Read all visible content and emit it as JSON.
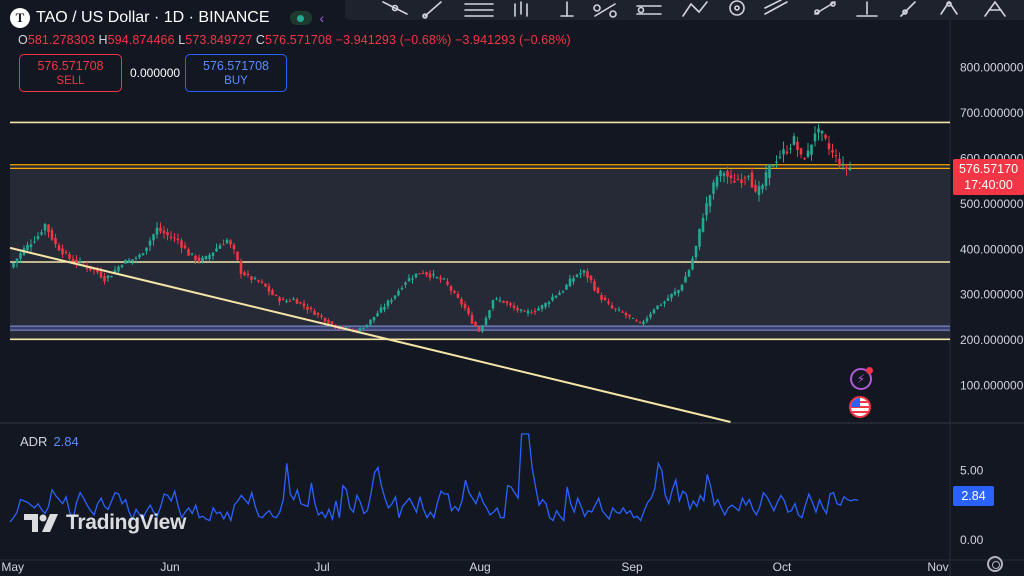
{
  "header": {
    "logo_letter": "T",
    "title": "TAO / US Dollar · 1D · BINANCE"
  },
  "ohlc": {
    "o_label": "O",
    "o": "581.278303",
    "h_label": "H",
    "h": "594.874466",
    "l_label": "L",
    "l": "573.849727",
    "c_label": "C",
    "c": "576.571708",
    "change": "−3.941293 (−0.68%)",
    "change2": "−3.941293 (−0.68%)"
  },
  "trade": {
    "sell_price": "576.571708",
    "sell_label": "SELL",
    "spread": "0.000000",
    "buy_price": "576.571708",
    "buy_label": "BUY"
  },
  "price_tag": {
    "price": "576.57170",
    "countdown": "17:40:00"
  },
  "adr_tag": "2.84",
  "adr_legend": {
    "name": "ADR",
    "value": "2.84"
  },
  "watermark": "TradingView",
  "icons": {
    "logo": "tao-logo-icon",
    "status": "market-open-icon",
    "flash": "flash-event-icon",
    "flag": "us-flag-event-icon",
    "settings": "settings-icon"
  },
  "colors": {
    "background": "#131722",
    "up": "#22ab94",
    "down": "#f23645",
    "level_line": "#f5e6a8",
    "current_price": "#f7a600",
    "adr_line": "#2962ff"
  },
  "chart_data": [
    {
      "type": "candlestick",
      "title": "TAO / US Dollar · 1D · BINANCE",
      "x_ticks": [
        "May",
        "Jun",
        "Jul",
        "Aug",
        "Sep",
        "Oct",
        "Nov"
      ],
      "y_ticks": [
        "100.000000",
        "200.000000",
        "300.000000",
        "400.000000",
        "500.000000",
        "600.000000",
        "700.000000",
        "800.000000"
      ],
      "ylim": [
        20,
        900
      ],
      "close_path": [
        [
          0,
          360
        ],
        [
          4,
          400
        ],
        [
          8,
          430
        ],
        [
          10,
          455
        ],
        [
          13,
          410
        ],
        [
          17,
          380
        ],
        [
          21,
          365
        ],
        [
          25,
          350
        ],
        [
          27,
          335
        ],
        [
          29,
          345
        ],
        [
          32,
          370
        ],
        [
          34,
          375
        ],
        [
          37,
          385
        ],
        [
          40,
          420
        ],
        [
          42,
          445
        ],
        [
          45,
          430
        ],
        [
          48,
          420
        ],
        [
          51,
          390
        ],
        [
          54,
          375
        ],
        [
          56,
          380
        ],
        [
          58,
          395
        ],
        [
          60,
          410
        ],
        [
          62,
          420
        ],
        [
          64,
          395
        ],
        [
          66,
          350
        ],
        [
          69,
          335
        ],
        [
          72,
          325
        ],
        [
          75,
          300
        ],
        [
          78,
          285
        ],
        [
          81,
          290
        ],
        [
          84,
          275
        ],
        [
          87,
          260
        ],
        [
          90,
          245
        ],
        [
          93,
          230
        ],
        [
          96,
          225
        ],
        [
          99,
          220
        ],
        [
          102,
          235
        ],
        [
          105,
          260
        ],
        [
          107,
          275
        ],
        [
          110,
          300
        ],
        [
          113,
          330
        ],
        [
          116,
          345
        ],
        [
          118,
          350
        ],
        [
          121,
          340
        ],
        [
          124,
          330
        ],
        [
          126,
          310
        ],
        [
          128,
          290
        ],
        [
          130,
          270
        ],
        [
          132,
          240
        ],
        [
          134,
          220
        ],
        [
          136,
          250
        ],
        [
          138,
          290
        ],
        [
          141,
          285
        ],
        [
          144,
          270
        ],
        [
          147,
          260
        ],
        [
          150,
          265
        ],
        [
          153,
          280
        ],
        [
          155,
          295
        ],
        [
          158,
          310
        ],
        [
          160,
          330
        ],
        [
          162,
          345
        ],
        [
          164,
          350
        ],
        [
          166,
          330
        ],
        [
          168,
          300
        ],
        [
          170,
          285
        ],
        [
          172,
          270
        ],
        [
          175,
          260
        ],
        [
          178,
          245
        ],
        [
          180,
          235
        ],
        [
          182,
          250
        ],
        [
          184,
          270
        ],
        [
          187,
          285
        ],
        [
          189,
          300
        ],
        [
          191,
          310
        ],
        [
          194,
          355
        ],
        [
          196,
          405
        ],
        [
          198,
          475
        ],
        [
          200,
          520
        ],
        [
          202,
          560
        ],
        [
          204,
          570
        ],
        [
          206,
          550
        ],
        [
          209,
          555
        ],
        [
          211,
          570
        ],
        [
          213,
          520
        ],
        [
          215,
          540
        ],
        [
          217,
          580
        ],
        [
          219,
          600
        ],
        [
          222,
          620
        ],
        [
          224,
          640
        ],
        [
          226,
          600
        ],
        [
          228,
          610
        ],
        [
          230,
          660
        ],
        [
          232,
          650
        ],
        [
          234,
          620
        ],
        [
          236,
          600
        ],
        [
          238,
          580
        ],
        [
          240,
          577
        ]
      ],
      "levels": [
        {
          "label": "resistance",
          "value": 679
        },
        {
          "label": "current",
          "value": 586
        },
        {
          "label": "current",
          "value": 578
        },
        {
          "label": "support",
          "value": 372
        },
        {
          "label": "support",
          "value": 231
        },
        {
          "label": "support",
          "value": 222
        },
        {
          "label": "support",
          "value": 202
        }
      ],
      "trendline": {
        "from": [
          0,
          403
        ],
        "to": [
          203,
          20
        ]
      },
      "last_price": 576.571708
    },
    {
      "type": "line",
      "title": "ADR",
      "y_ticks": [
        "0.00",
        "5.00"
      ],
      "ylim": [
        0,
        7.6
      ],
      "series": [
        {
          "name": "ADR",
          "values": [
            1.3,
            1.6,
            2.0,
            2.9,
            2.8,
            2.7,
            2.5,
            2.3,
            2.6,
            2.2,
            1.9,
            2.4,
            3.6,
            3.2,
            2.9,
            2.6,
            3.1,
            2.0,
            1.5,
            2.7,
            3.4,
            3.0,
            2.5,
            2.1,
            1.8,
            2.6,
            3.0,
            2.4,
            2.2,
            2.8,
            3.4,
            3.3,
            2.6,
            2.9,
            2.0,
            1.5,
            2.2,
            1.8,
            1.6,
            2.1,
            2.5,
            2.0,
            1.7,
            2.4,
            3.3,
            3.2,
            2.8,
            3.5,
            2.4,
            1.6,
            2.0,
            2.3,
            1.9,
            2.5,
            1.6,
            1.7,
            1.5,
            1.4,
            2.3,
            1.9,
            2.0,
            1.5,
            2.0,
            1.4,
            2.5,
            2.8,
            3.2,
            2.9,
            2.6,
            3.4,
            2.4,
            1.7,
            1.6,
            1.9,
            2.1,
            1.7,
            1.6,
            2.0,
            2.9,
            5.5,
            3.3,
            2.9,
            3.6,
            2.6,
            2.5,
            2.4,
            4.1,
            2.6,
            1.8,
            2.0,
            1.6,
            2.2,
            1.5,
            2.8,
            1.6,
            3.9,
            3.6,
            2.3,
            2.0,
            3.2,
            2.7,
            1.9,
            2.1,
            3.3,
            4.8,
            5.2,
            3.9,
            3.0,
            2.3,
            2.6,
            3.1,
            1.6,
            2.4,
            2.7,
            3.0,
            2.5,
            2.0,
            3.1,
            2.2,
            1.6,
            2.0,
            1.6,
            2.7,
            3.5,
            3.3,
            3.3,
            2.1,
            2.4,
            2.1,
            2.8,
            4.3,
            3.4,
            3.0,
            2.6,
            3.4,
            2.7,
            2.3,
            1.8,
            2.0,
            2.3,
            1.6,
            1.6,
            3.9,
            3.8,
            3.4,
            3.0,
            7.6,
            7.6,
            7.6,
            5.2,
            3.8,
            2.5,
            2.9,
            2.6,
            1.6,
            1.4,
            2.1,
            1.7,
            1.4,
            3.8,
            2.6,
            2.0,
            3.0,
            2.4,
            1.7,
            2.1,
            2.0,
            2.5,
            3.0,
            2.1,
            1.8,
            1.5,
            2.3,
            2.0,
            1.9,
            2.3,
            1.9,
            2.1,
            1.6,
            1.7,
            1.4,
            2.1,
            2.7,
            3.0,
            3.7,
            5.5,
            5.0,
            3.2,
            2.6,
            3.6,
            4.3,
            2.8,
            3.5,
            3.3,
            2.2,
            2.8,
            2.4,
            3.2,
            2.8,
            4.7,
            3.8,
            2.5,
            2.9,
            2.3,
            1.8,
            2.3,
            2.5,
            2.3,
            2.1,
            3.0,
            2.5,
            2.9,
            2.2,
            1.8,
            2.4,
            3.4,
            3.1,
            2.6,
            2.1,
            2.7,
            3.2,
            2.8,
            2.0,
            2.1,
            2.6,
            1.8,
            1.6,
            2.5,
            3.3,
            2.7,
            2.0,
            2.9,
            2.3,
            1.9,
            3.3,
            3.4,
            2.6,
            2.5,
            3.1,
            2.9,
            2.8,
            2.9,
            2.84
          ]
        }
      ]
    }
  ]
}
